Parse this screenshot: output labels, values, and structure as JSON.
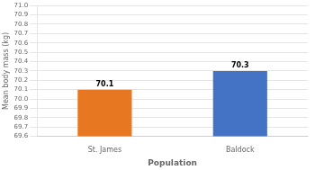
{
  "chart_data": {
    "type": "bar",
    "categories": [
      "St. James",
      "Baldock"
    ],
    "values": [
      70.1,
      70.3
    ],
    "colors": [
      "#E87722",
      "#4472C4"
    ],
    "xlabel": "Population",
    "ylabel": "Mean body mass (kg)",
    "ylim": [
      69.6,
      71.0
    ],
    "yticks": [
      69.6,
      69.7,
      69.8,
      69.9,
      {
        "value": 70.0,
        "label": "70.0"
      },
      70.1,
      70.2,
      70.3,
      70.4,
      70.5,
      70.6,
      70.7,
      70.8,
      70.9,
      {
        "value": 71.0,
        "label": "71.0"
      }
    ],
    "grid": true,
    "data_labels": true
  }
}
